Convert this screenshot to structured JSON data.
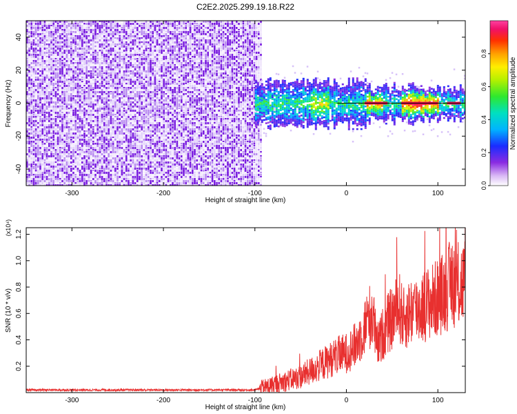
{
  "title": "C2E2.2025.299.19.18.R22",
  "chart_data": [
    {
      "id": "spectrogram",
      "type": "heatmap",
      "xlabel": "Height of straight line (km)",
      "ylabel": "Frequency (Hz)",
      "xlim": [
        -350,
        130
      ],
      "ylim": [
        -50,
        50
      ],
      "xticks": [
        -300,
        -200,
        -100,
        0,
        100
      ],
      "yticks": [
        -40,
        -20,
        0,
        20,
        40
      ],
      "colorbar": {
        "label": "Normalized spectral amplitude",
        "range": [
          0.0,
          1.0
        ],
        "ticks": [
          0.0,
          0.2,
          0.4,
          0.6,
          0.8
        ]
      },
      "regions": [
        {
          "name": "noise",
          "x": [
            -350,
            -92
          ],
          "freq_spread": [
            -50,
            50
          ],
          "amplitude": [
            0.05,
            0.15
          ]
        },
        {
          "name": "signal",
          "x": [
            -100,
            130
          ],
          "freq_spread": [
            -8,
            8
          ],
          "amplitude": [
            0.2,
            1.0
          ],
          "center_freq": 0
        }
      ]
    },
    {
      "id": "snr",
      "type": "line",
      "xlabel": "Height of straight line (km)",
      "ylabel": "SNR (10 * v/v)",
      "scale_label": "(x10⁴)",
      "xlim": [
        -350,
        130
      ],
      "ylim": [
        0,
        1.25
      ],
      "xticks": [
        -300,
        -200,
        -100,
        0,
        100
      ],
      "yticks": [
        0.2,
        0.4,
        0.6,
        0.8,
        1.0,
        1.2
      ],
      "series": [
        {
          "name": "SNR",
          "color": "#e8302f",
          "x": [
            -350,
            -300,
            -250,
            -200,
            -150,
            -100,
            -90,
            -80,
            -70,
            -60,
            -50,
            -40,
            -30,
            -20,
            -10,
            0,
            10,
            15,
            20,
            25,
            30,
            33,
            36,
            40,
            45,
            50,
            55,
            58,
            62,
            66,
            70,
            80,
            90,
            100,
            110,
            115,
            120,
            125,
            130
          ],
          "values": [
            0.02,
            0.02,
            0.02,
            0.02,
            0.02,
            0.02,
            0.04,
            0.06,
            0.08,
            0.1,
            0.12,
            0.16,
            0.2,
            0.24,
            0.28,
            0.3,
            0.36,
            0.42,
            0.5,
            0.58,
            0.55,
            0.35,
            0.38,
            0.45,
            0.52,
            0.56,
            0.62,
            0.65,
            0.55,
            0.58,
            0.62,
            0.64,
            0.68,
            0.72,
            0.78,
            0.85,
            0.8,
            0.82,
            0.85
          ]
        }
      ]
    }
  ]
}
